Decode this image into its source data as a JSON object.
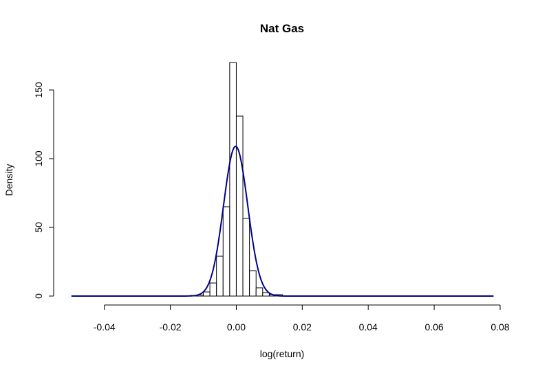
{
  "chart_data": {
    "type": "bar",
    "title": "Nat Gas",
    "xlabel": "log(return)",
    "ylabel": "Density",
    "xlim": [
      -0.05,
      0.078
    ],
    "ylim": [
      0,
      170
    ],
    "x_ticks": [
      -0.04,
      -0.02,
      0.0,
      0.02,
      0.04,
      0.06,
      0.08
    ],
    "x_tick_labels": [
      "-0.04",
      "-0.02",
      "0.00",
      "0.02",
      "0.04",
      "0.06",
      "0.08"
    ],
    "y_ticks": [
      0,
      50,
      100,
      150
    ],
    "y_tick_labels": [
      "0",
      "50",
      "100",
      "150"
    ],
    "grid": false,
    "histogram": {
      "bin_width": 0.002,
      "bins": [
        {
          "x0": -0.016,
          "x1": -0.014,
          "density": 0.2
        },
        {
          "x0": -0.014,
          "x1": -0.012,
          "density": 0.5
        },
        {
          "x0": -0.012,
          "x1": -0.01,
          "density": 0.8
        },
        {
          "x0": -0.01,
          "x1": -0.008,
          "density": 3
        },
        {
          "x0": -0.008,
          "x1": -0.006,
          "density": 9.5
        },
        {
          "x0": -0.006,
          "x1": -0.004,
          "density": 29
        },
        {
          "x0": -0.004,
          "x1": -0.002,
          "density": 65
        },
        {
          "x0": -0.002,
          "x1": 0.0,
          "density": 170
        },
        {
          "x0": 0.0,
          "x1": 0.002,
          "density": 131
        },
        {
          "x0": 0.002,
          "x1": 0.004,
          "density": 56.5
        },
        {
          "x0": 0.004,
          "x1": 0.006,
          "density": 18.5
        },
        {
          "x0": 0.006,
          "x1": 0.008,
          "density": 6
        },
        {
          "x0": 0.008,
          "x1": 0.01,
          "density": 2.5
        },
        {
          "x0": 0.01,
          "x1": 0.012,
          "density": 1
        },
        {
          "x0": 0.012,
          "x1": 0.014,
          "density": 1
        }
      ]
    },
    "series": [
      {
        "type": "line",
        "color": "#00008b",
        "normal_fit": {
          "mean": -0.0002,
          "sd": 0.00366
        },
        "x_range": [
          -0.05,
          0.078
        ]
      }
    ]
  }
}
